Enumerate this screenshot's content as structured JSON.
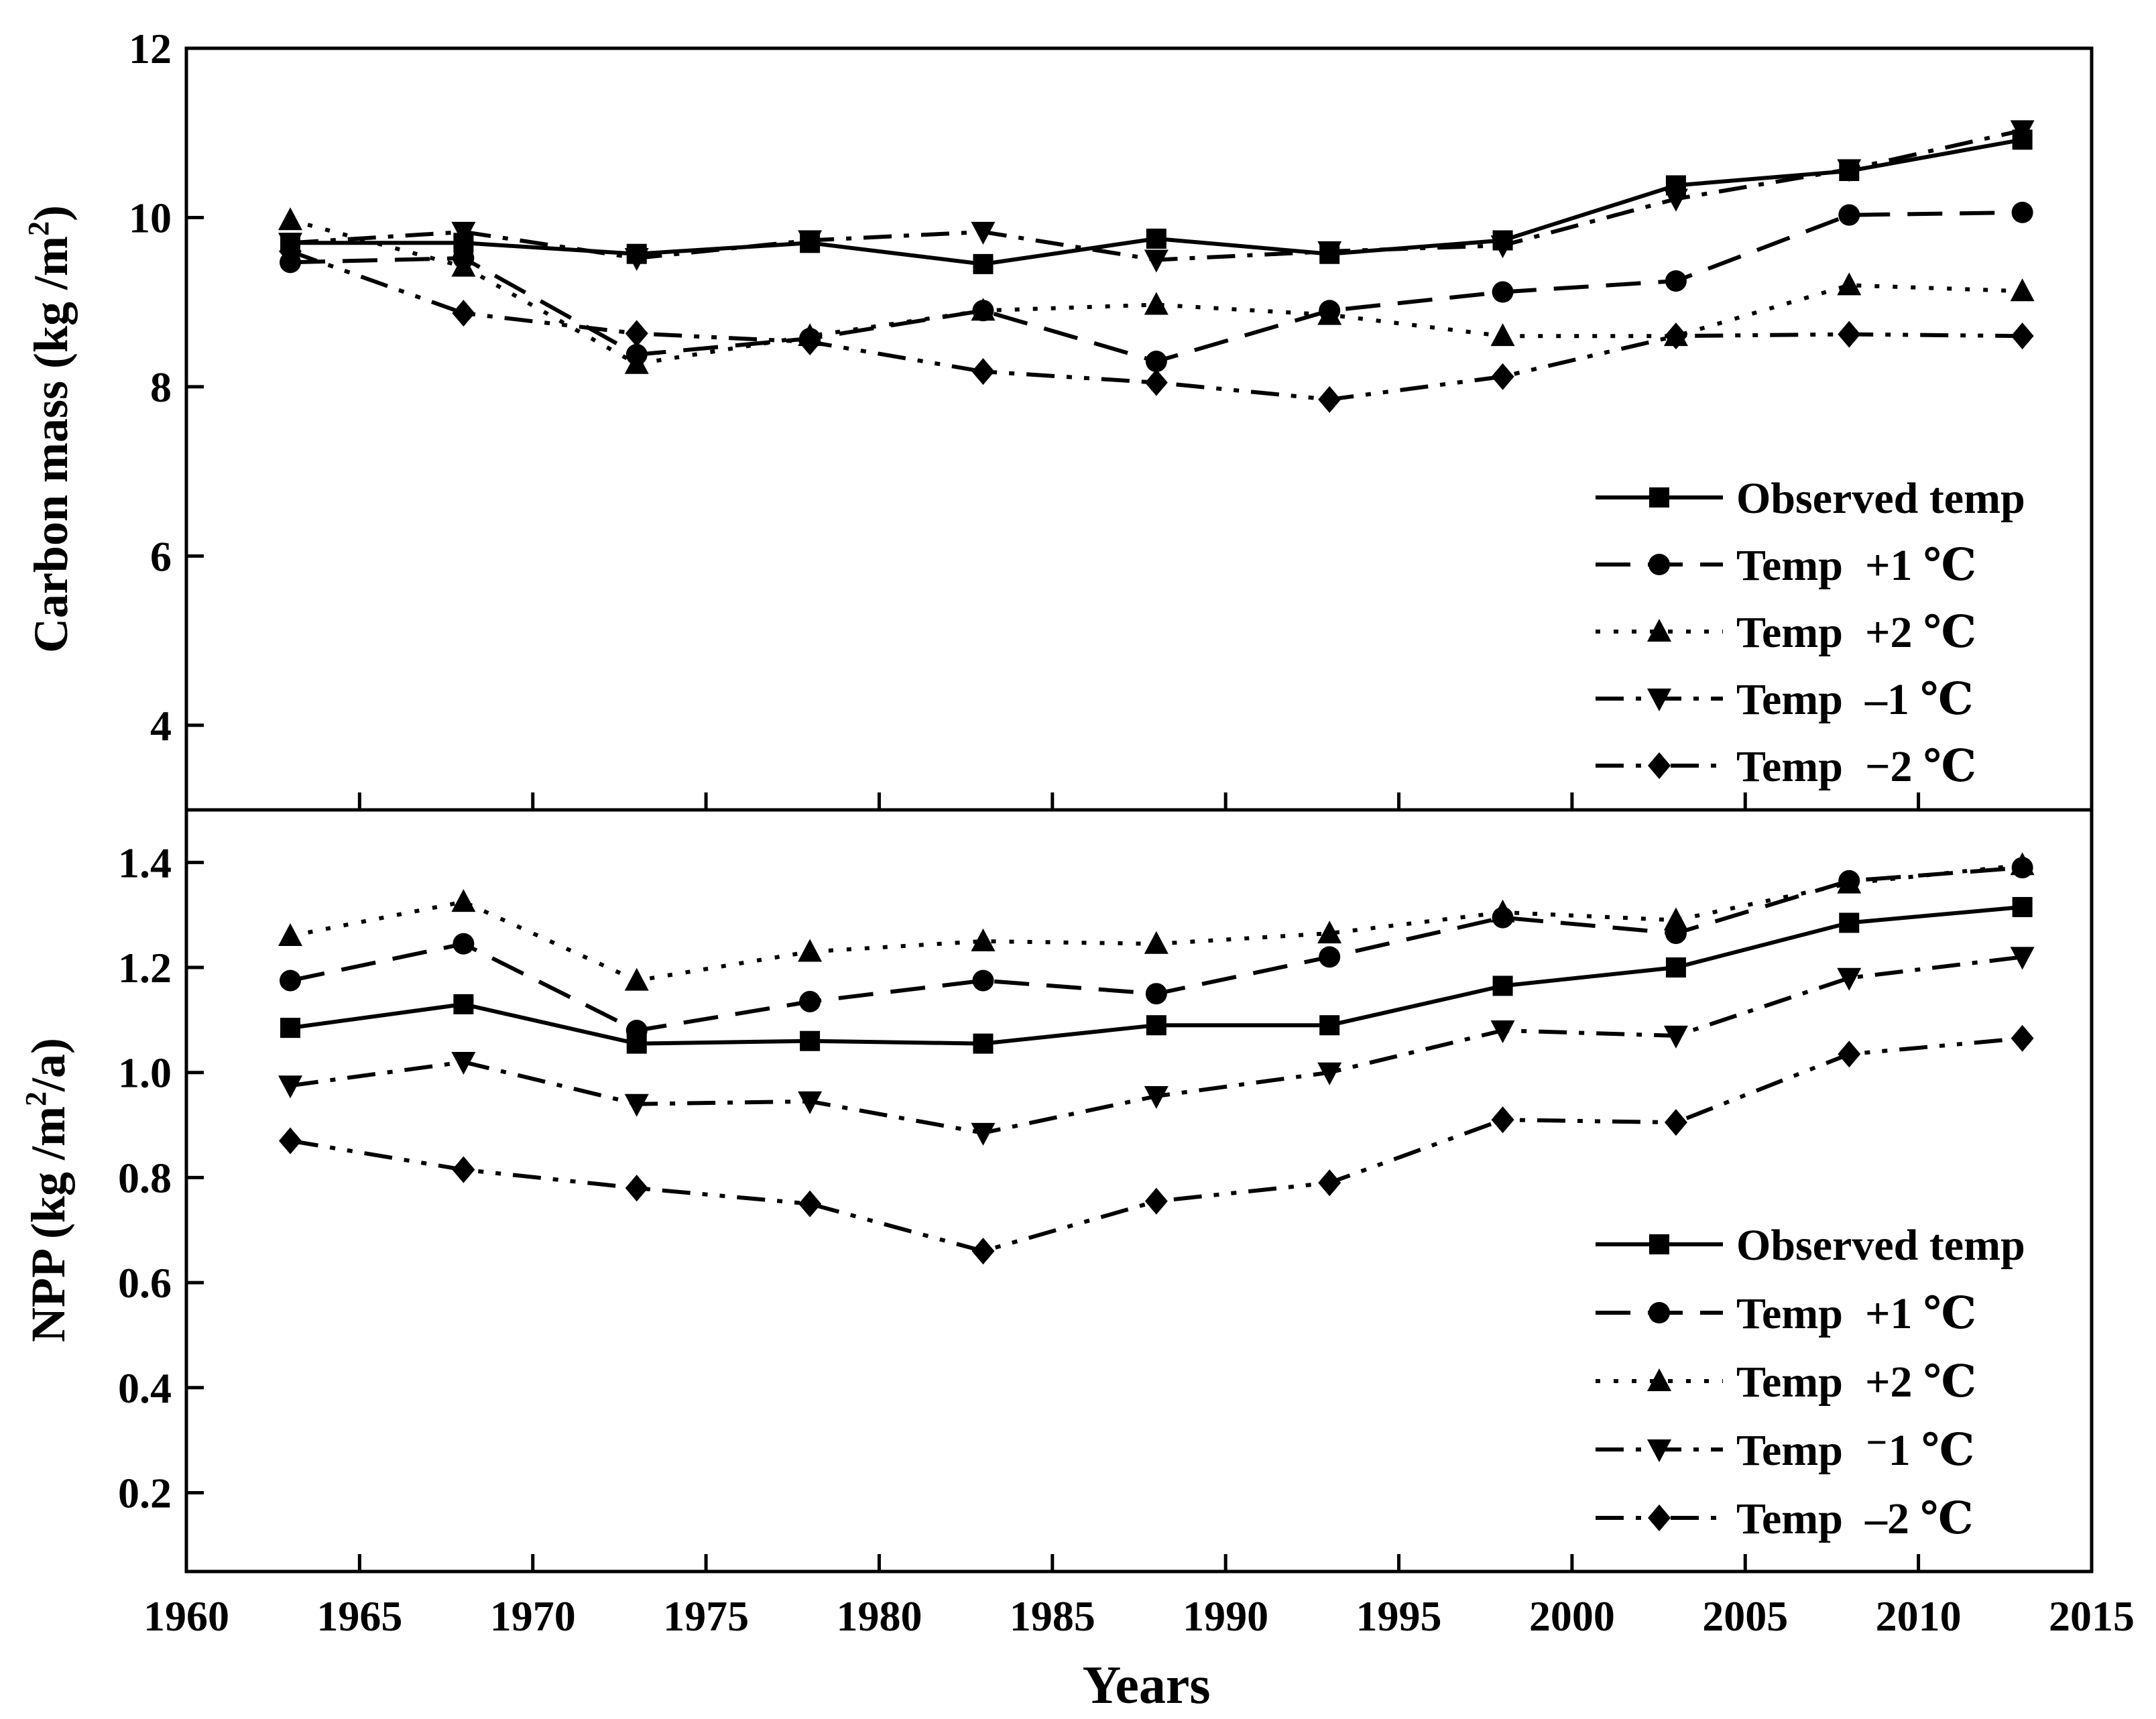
{
  "chart_data": [
    {
      "type": "line",
      "panel": "top",
      "ylabel_main": "Carbon mass (kg /m",
      "ylabel_sup": "2",
      "ylabel_tail": ")",
      "ylim": [
        3,
        12
      ],
      "yticks": [
        4,
        6,
        8,
        10,
        12
      ],
      "xlim": [
        1960,
        2015
      ],
      "x": [
        1963,
        1968,
        1973,
        1978,
        1983,
        1988,
        1993,
        1998,
        2003,
        2008,
        2013
      ],
      "series": [
        {
          "name": "Observed temp",
          "marker": "square",
          "dash": "solid",
          "values": [
            9.7,
            9.7,
            9.57,
            9.7,
            9.45,
            9.75,
            9.57,
            9.73,
            10.38,
            10.55,
            10.92
          ]
        },
        {
          "name": "Temp  +1 ℃",
          "marker": "circle",
          "dash": "dash",
          "values": [
            9.47,
            9.52,
            8.38,
            8.57,
            8.9,
            8.3,
            8.9,
            9.12,
            9.25,
            10.03,
            10.06
          ]
        },
        {
          "name": "Temp  +2 ℃",
          "marker": "triangle-up",
          "dash": "dot",
          "values": [
            9.97,
            9.42,
            8.27,
            8.6,
            8.9,
            8.97,
            8.85,
            8.6,
            8.6,
            9.2,
            9.13
          ]
        },
        {
          "name": "Temp  –1 ℃",
          "marker": "triangle-down",
          "dash": "dashdot",
          "values": [
            9.7,
            9.83,
            9.52,
            9.73,
            9.83,
            9.5,
            9.6,
            9.67,
            10.22,
            10.57,
            11.03
          ]
        },
        {
          "name": "Temp  −2 ℃",
          "marker": "diamond",
          "dash": "dashdotdot",
          "values": [
            9.6,
            8.87,
            8.63,
            8.53,
            8.18,
            8.05,
            7.85,
            8.12,
            8.6,
            8.62,
            8.6
          ]
        }
      ],
      "legend_position": "bottom-right"
    },
    {
      "type": "line",
      "panel": "bottom",
      "ylabel_main": "NPP (kg /m",
      "ylabel_sup": "2",
      "ylabel_tail": "/a)",
      "ylim": [
        0.05,
        1.5
      ],
      "yticks": [
        0.2,
        0.4,
        0.6,
        0.8,
        1.0,
        1.2,
        1.4
      ],
      "ytick_labels": [
        "0.2",
        "0.4",
        "0.6",
        "0.8",
        "1.0",
        "1.2",
        "1.4"
      ],
      "xlim": [
        1960,
        2015
      ],
      "xticks": [
        1960,
        1965,
        1970,
        1975,
        1980,
        1985,
        1990,
        1995,
        2000,
        2005,
        2010,
        2015
      ],
      "xlabel": "Years",
      "x": [
        1963,
        1968,
        1973,
        1978,
        1983,
        1988,
        1993,
        1998,
        2003,
        2008,
        2013
      ],
      "series": [
        {
          "name": "Observed temp",
          "marker": "square",
          "dash": "solid",
          "values": [
            1.085,
            1.13,
            1.055,
            1.06,
            1.055,
            1.09,
            1.09,
            1.165,
            1.2,
            1.285,
            1.315
          ]
        },
        {
          "name": "Temp  +1 ℃",
          "marker": "circle",
          "dash": "dash",
          "values": [
            1.175,
            1.245,
            1.08,
            1.135,
            1.175,
            1.15,
            1.22,
            1.295,
            1.265,
            1.365,
            1.39
          ]
        },
        {
          "name": "Temp  +2 ℃",
          "marker": "triangle-up",
          "dash": "dot",
          "values": [
            1.26,
            1.325,
            1.175,
            1.23,
            1.25,
            1.245,
            1.265,
            1.305,
            1.29,
            1.36,
            1.395
          ]
        },
        {
          "name": "Temp  ⁻1 ℃",
          "marker": "triangle-down",
          "dash": "dashdot",
          "values": [
            0.975,
            1.02,
            0.94,
            0.945,
            0.885,
            0.955,
            1.0,
            1.08,
            1.07,
            1.18,
            1.22
          ]
        },
        {
          "name": "Temp  –2 ℃",
          "marker": "diamond",
          "dash": "dashdotdot",
          "values": [
            0.87,
            0.815,
            0.78,
            0.75,
            0.66,
            0.755,
            0.79,
            0.91,
            0.905,
            1.035,
            1.065
          ]
        }
      ],
      "legend_position": "bottom-right"
    }
  ]
}
